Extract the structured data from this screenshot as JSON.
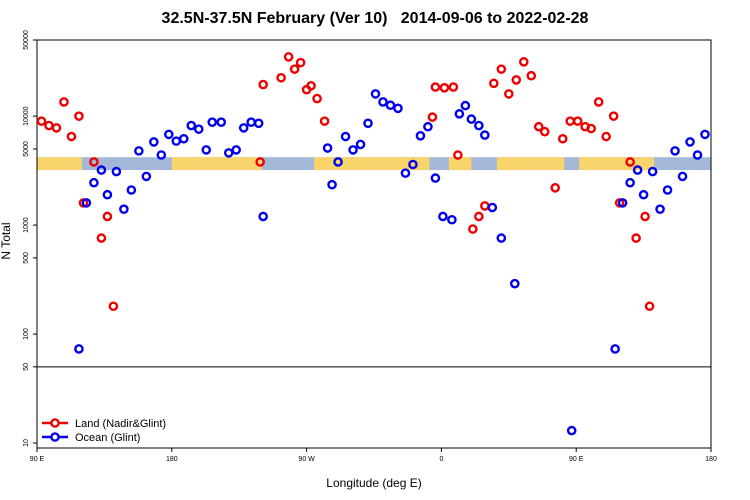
{
  "chart_data": {
    "type": "scatter",
    "title": "32.5N-37.5N February (Ver 10)   2014-09-06 to 2022-02-28",
    "xlabel": "Longitude (deg E)",
    "ylabel": "N Total",
    "x_ticks": [
      {
        "value": 0,
        "label": "90 E"
      },
      {
        "value": 90,
        "label": "180"
      },
      {
        "value": 180,
        "label": "90 W"
      },
      {
        "value": 270,
        "label": "0"
      },
      {
        "value": 360,
        "label": "90 E"
      },
      {
        "value": 450,
        "label": "180"
      }
    ],
    "xlim": [
      0,
      450
    ],
    "y_scale": "log",
    "ylim": [
      9,
      50000
    ],
    "y_ticks": [
      10,
      50,
      100,
      500,
      1000,
      5000,
      10000,
      50000
    ],
    "reference_line": 50,
    "land_mask_band": {
      "y_range": [
        3200,
        4200
      ],
      "ocean_color": "#a3b8d8",
      "land_color": "#f9d46b",
      "land_segments": [
        [
          0,
          30
        ],
        [
          90,
          150
        ],
        [
          185,
          262
        ],
        [
          275,
          290
        ],
        [
          307,
          352
        ],
        [
          362,
          412
        ]
      ]
    },
    "series": [
      {
        "name": "Land (Nadir&Glint)",
        "color": "#ee0000",
        "points": [
          [
            3,
            9000
          ],
          [
            8,
            8200
          ],
          [
            13,
            7800
          ],
          [
            18,
            13500
          ],
          [
            23,
            6500
          ],
          [
            28,
            10000
          ],
          [
            31,
            1600
          ],
          [
            38,
            3800
          ],
          [
            43,
            760
          ],
          [
            47,
            1200
          ],
          [
            51,
            180
          ],
          [
            149,
            3800
          ],
          [
            151,
            19500
          ],
          [
            163,
            22500
          ],
          [
            168,
            35000
          ],
          [
            172,
            27000
          ],
          [
            176,
            31000
          ],
          [
            180,
            17500
          ],
          [
            183,
            19000
          ],
          [
            187,
            14500
          ],
          [
            192,
            9000
          ],
          [
            264,
            9800
          ],
          [
            266,
            18500
          ],
          [
            272,
            18200
          ],
          [
            278,
            18500
          ],
          [
            281,
            4400
          ],
          [
            291,
            920
          ],
          [
            295,
            1200
          ],
          [
            299,
            1500
          ],
          [
            305,
            20000
          ],
          [
            310,
            27000
          ],
          [
            315,
            16000
          ],
          [
            320,
            21500
          ],
          [
            325,
            31500
          ],
          [
            330,
            23500
          ],
          [
            335,
            8000
          ],
          [
            339,
            7200
          ],
          [
            346,
            2200
          ],
          [
            351,
            6200
          ],
          [
            356,
            9000
          ],
          [
            361,
            9000
          ],
          [
            366,
            8000
          ],
          [
            370,
            7700
          ],
          [
            375,
            13500
          ],
          [
            380,
            6500
          ],
          [
            385,
            10000
          ],
          [
            389,
            1600
          ],
          [
            396,
            3800
          ],
          [
            400,
            760
          ],
          [
            406,
            1200
          ],
          [
            409,
            180
          ]
        ]
      },
      {
        "name": "Ocean (Glint)",
        "color": "#0000ee",
        "points": [
          [
            28,
            73
          ],
          [
            33,
            1600
          ],
          [
            38,
            2450
          ],
          [
            43,
            3200
          ],
          [
            47,
            1900
          ],
          [
            53,
            3100
          ],
          [
            58,
            1400
          ],
          [
            63,
            2100
          ],
          [
            68,
            4800
          ],
          [
            73,
            2800
          ],
          [
            78,
            5800
          ],
          [
            83,
            4400
          ],
          [
            88,
            6800
          ],
          [
            93,
            5900
          ],
          [
            98,
            6200
          ],
          [
            103,
            8200
          ],
          [
            108,
            7600
          ],
          [
            113,
            4900
          ],
          [
            117,
            8800
          ],
          [
            123,
            8800
          ],
          [
            128,
            4600
          ],
          [
            133,
            4900
          ],
          [
            138,
            7800
          ],
          [
            143,
            8800
          ],
          [
            148,
            8600
          ],
          [
            151,
            1200
          ],
          [
            194,
            5100
          ],
          [
            197,
            2350
          ],
          [
            201,
            3800
          ],
          [
            206,
            6500
          ],
          [
            211,
            4900
          ],
          [
            216,
            5500
          ],
          [
            221,
            8600
          ],
          [
            226,
            16000
          ],
          [
            231,
            13500
          ],
          [
            236,
            12600
          ],
          [
            241,
            11800
          ],
          [
            246,
            3000
          ],
          [
            251,
            3600
          ],
          [
            256,
            6600
          ],
          [
            261,
            8000
          ],
          [
            266,
            2700
          ],
          [
            271,
            1200
          ],
          [
            277,
            1120
          ],
          [
            282,
            10500
          ],
          [
            286,
            12500
          ],
          [
            290,
            9400
          ],
          [
            295,
            8200
          ],
          [
            299,
            6700
          ],
          [
            304,
            1450
          ],
          [
            310,
            760
          ],
          [
            319,
            290
          ],
          [
            357,
            13
          ],
          [
            386,
            73
          ],
          [
            391,
            1600
          ],
          [
            396,
            2450
          ],
          [
            401,
            3200
          ],
          [
            405,
            1900
          ],
          [
            411,
            3100
          ],
          [
            416,
            1400
          ],
          [
            421,
            2100
          ],
          [
            426,
            4800
          ],
          [
            431,
            2800
          ],
          [
            436,
            5800
          ],
          [
            441,
            4400
          ],
          [
            446,
            6800
          ]
        ]
      }
    ],
    "legend_position": "bottom-left"
  }
}
